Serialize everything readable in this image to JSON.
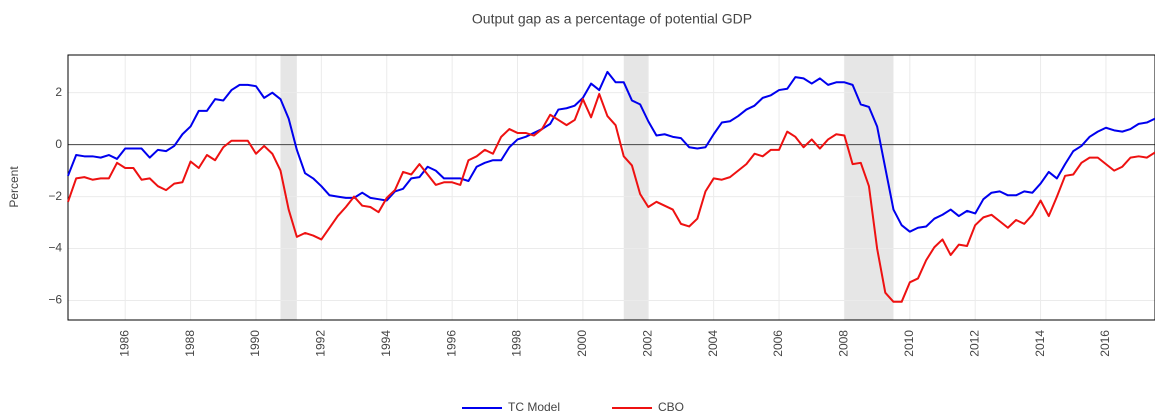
{
  "chart_data": {
    "type": "line",
    "title": "Output gap as a percentage of potential GDP",
    "y_label": "Percent",
    "x": [
      1984.25,
      1984.5,
      1984.75,
      1985,
      1985.25,
      1985.5,
      1985.75,
      1986,
      1986.25,
      1986.5,
      1986.75,
      1987,
      1987.25,
      1987.5,
      1987.75,
      1988,
      1988.25,
      1988.5,
      1988.75,
      1989,
      1989.25,
      1989.5,
      1989.75,
      1990,
      1990.25,
      1990.5,
      1990.75,
      1991,
      1991.25,
      1991.5,
      1991.75,
      1992,
      1992.25,
      1992.5,
      1992.75,
      1993,
      1993.25,
      1993.5,
      1993.75,
      1994,
      1994.25,
      1994.5,
      1994.75,
      1995,
      1995.25,
      1995.5,
      1995.75,
      1996,
      1996.25,
      1996.5,
      1996.75,
      1997,
      1997.25,
      1997.5,
      1997.75,
      1998,
      1998.25,
      1998.5,
      1998.75,
      1999,
      1999.25,
      1999.5,
      1999.75,
      2000,
      2000.25,
      2000.5,
      2000.75,
      2001,
      2001.25,
      2001.5,
      2001.75,
      2002,
      2002.25,
      2002.5,
      2002.75,
      2003,
      2003.25,
      2003.5,
      2003.75,
      2004,
      2004.25,
      2004.5,
      2004.75,
      2005,
      2005.25,
      2005.5,
      2005.75,
      2006,
      2006.25,
      2006.5,
      2006.75,
      2007,
      2007.25,
      2007.5,
      2007.75,
      2008,
      2008.25,
      2008.5,
      2008.75,
      2009,
      2009.25,
      2009.5,
      2009.75,
      2010,
      2010.25,
      2010.5,
      2010.75,
      2011,
      2011.25,
      2011.5,
      2011.75,
      2012,
      2012.25,
      2012.5,
      2012.75,
      2013,
      2013.25,
      2013.5,
      2013.75,
      2014,
      2014.25,
      2014.5,
      2014.75,
      2015,
      2015.25,
      2015.5,
      2015.75,
      2016,
      2016.25,
      2016.5,
      2016.75,
      2017,
      2017.25,
      2017.5
    ],
    "series": [
      {
        "name": "TC Model",
        "color": "#0000ee",
        "values": [
          -1.2,
          -0.4,
          -0.45,
          -0.45,
          -0.5,
          -0.4,
          -0.55,
          -0.15,
          -0.15,
          -0.15,
          -0.5,
          -0.2,
          -0.25,
          -0.05,
          0.4,
          0.7,
          1.3,
          1.3,
          1.75,
          1.7,
          2.1,
          2.3,
          2.3,
          2.25,
          1.8,
          2.0,
          1.75,
          1.0,
          -0.2,
          -1.1,
          -1.3,
          -1.6,
          -1.95,
          -2.0,
          -2.05,
          -2.05,
          -1.85,
          -2.05,
          -2.1,
          -2.15,
          -1.8,
          -1.7,
          -1.3,
          -1.25,
          -0.85,
          -1.0,
          -1.3,
          -1.3,
          -1.3,
          -1.4,
          -0.85,
          -0.7,
          -0.6,
          -0.6,
          -0.1,
          0.2,
          0.3,
          0.45,
          0.6,
          0.8,
          1.35,
          1.4,
          1.5,
          1.8,
          2.35,
          2.1,
          2.8,
          2.4,
          2.4,
          1.7,
          1.55,
          0.9,
          0.35,
          0.4,
          0.3,
          0.25,
          -0.1,
          -0.15,
          -0.1,
          0.4,
          0.85,
          0.9,
          1.1,
          1.35,
          1.5,
          1.8,
          1.9,
          2.1,
          2.15,
          2.6,
          2.55,
          2.35,
          2.55,
          2.3,
          2.4,
          2.4,
          2.3,
          1.55,
          1.45,
          0.7,
          -0.9,
          -2.5,
          -3.1,
          -3.35,
          -3.2,
          -3.15,
          -2.85,
          -2.7,
          -2.5,
          -2.75,
          -2.55,
          -2.65,
          -2.1,
          -1.85,
          -1.8,
          -1.95,
          -1.95,
          -1.8,
          -1.85,
          -1.5,
          -1.05,
          -1.3,
          -0.75,
          -0.25,
          -0.05,
          0.3,
          0.5,
          0.65,
          0.55,
          0.5,
          0.6,
          0.8,
          0.85,
          1.0
        ]
      },
      {
        "name": "CBO",
        "color": "#ee1111",
        "values": [
          -2.2,
          -1.3,
          -1.25,
          -1.35,
          -1.3,
          -1.3,
          -0.7,
          -0.9,
          -0.9,
          -1.35,
          -1.3,
          -1.6,
          -1.75,
          -1.5,
          -1.45,
          -0.65,
          -0.9,
          -0.4,
          -0.6,
          -0.1,
          0.15,
          0.15,
          0.15,
          -0.35,
          -0.05,
          -0.35,
          -1.0,
          -2.5,
          -3.55,
          -3.4,
          -3.5,
          -3.65,
          -3.2,
          -2.75,
          -2.4,
          -2.0,
          -2.35,
          -2.4,
          -2.6,
          -2.05,
          -1.75,
          -1.05,
          -1.15,
          -0.75,
          -1.15,
          -1.55,
          -1.45,
          -1.45,
          -1.55,
          -0.6,
          -0.45,
          -0.2,
          -0.35,
          0.3,
          0.6,
          0.45,
          0.45,
          0.35,
          0.6,
          1.15,
          0.95,
          0.75,
          0.95,
          1.75,
          1.05,
          1.95,
          1.1,
          0.75,
          -0.45,
          -0.8,
          -1.9,
          -2.4,
          -2.2,
          -2.35,
          -2.5,
          -3.05,
          -3.15,
          -2.85,
          -1.8,
          -1.3,
          -1.35,
          -1.25,
          -1.0,
          -0.75,
          -0.35,
          -0.45,
          -0.2,
          -0.2,
          0.5,
          0.3,
          -0.1,
          0.2,
          -0.15,
          0.2,
          0.4,
          0.35,
          -0.75,
          -0.7,
          -1.6,
          -4.0,
          -5.7,
          -6.05,
          -6.05,
          -5.3,
          -5.15,
          -4.45,
          -3.95,
          -3.65,
          -4.25,
          -3.85,
          -3.9,
          -3.1,
          -2.8,
          -2.7,
          -2.95,
          -3.2,
          -2.9,
          -3.05,
          -2.7,
          -2.15,
          -2.75,
          -2.0,
          -1.2,
          -1.15,
          -0.7,
          -0.5,
          -0.5,
          -0.75,
          -1.0,
          -0.85,
          -0.5,
          -0.45,
          -0.5,
          -0.3
        ]
      }
    ],
    "shaded_regions": [
      [
        1990.75,
        1991.25
      ],
      [
        2001.25,
        2002.0
      ],
      [
        2008.0,
        2009.5
      ]
    ],
    "shade_color": "#e6e6e6",
    "xlim": [
      1984.25,
      2017.5
    ],
    "xticks": [
      1986,
      1988,
      1990,
      1992,
      1994,
      1996,
      1998,
      2000,
      2002,
      2004,
      2006,
      2008,
      2010,
      2012,
      2014,
      2016
    ],
    "ylim": [
      -6.75,
      3.45
    ],
    "yticks": [
      2,
      0,
      {
        "value": -2,
        "label": "−2"
      },
      {
        "value": -4,
        "label": "−4"
      },
      {
        "value": -6,
        "label": "−6"
      }
    ],
    "grid": true,
    "zeroline": true,
    "legend": "bottom"
  }
}
